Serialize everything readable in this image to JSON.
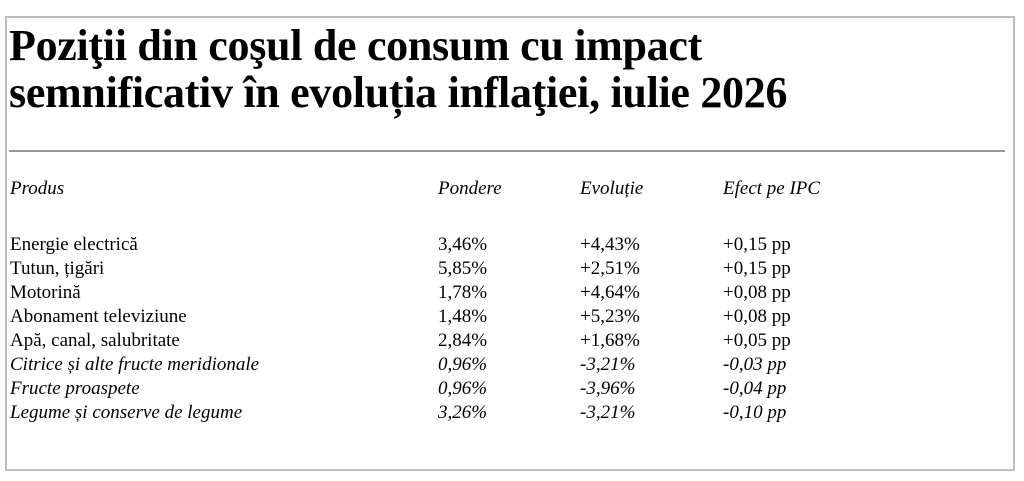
{
  "title": {
    "line1": "Poziţii din coşul de consum cu impact",
    "line2": "semnificativ în evoluția inflaţiei, iulie 2026"
  },
  "table": {
    "headers": {
      "produs": "Produs",
      "pondere": "Pondere",
      "evolutie": "Evoluție",
      "efect": "Efect pe IPC"
    },
    "rows": [
      {
        "produs": "Energie electrică",
        "pondere": "3,46%",
        "evolutie": "+4,43%",
        "efect": "+0,15 pp"
      },
      {
        "produs": "Tutun, țigări",
        "pondere": "5,85%",
        "evolutie": "+2,51%",
        "efect": "+0,15 pp"
      },
      {
        "produs": "Motorină",
        "pondere": "1,78%",
        "evolutie": "+4,64%",
        "efect": "+0,08 pp"
      },
      {
        "produs": "Abonament televiziune",
        "pondere": "1,48%",
        "evolutie": "+5,23%",
        "efect": "+0,08 pp"
      },
      {
        "produs": "Apă, canal, salubritate",
        "pondere": "2,84%",
        "evolutie": "+1,68%",
        "efect": "+0,05 pp"
      },
      {
        "produs": "Citrice și alte fructe meridionale",
        "pondere": "0,96%",
        "evolutie": "-3,21%",
        "efect": "-0,03 pp"
      },
      {
        "produs": "Fructe proaspete",
        "pondere": "0,96%",
        "evolutie": "-3,96%",
        "efect": "-0,04 pp"
      },
      {
        "produs": "Legume și conserve de legume",
        "pondere": "3,26%",
        "evolutie": "-3,21%",
        "efect": "-0,10 pp"
      }
    ]
  }
}
